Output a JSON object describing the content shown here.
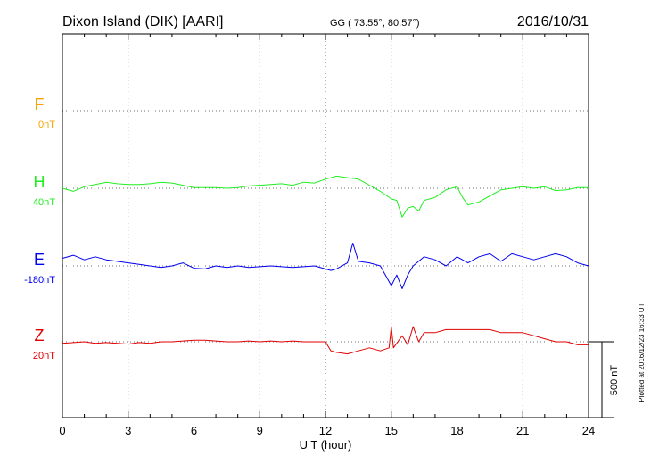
{
  "header": {
    "station": "Dixon Island (DIK)  [AARI]",
    "coords": "GG ( 73.55°,  80.57°)",
    "date": "2016/10/31"
  },
  "side_note": "Plotted at 2016/12/23 16:33 UT",
  "scale_label": "500 nT",
  "chart_data": {
    "type": "line",
    "xlabel": "U T (hour)",
    "xlim": [
      0,
      24
    ],
    "x_ticks": [
      "0",
      "3",
      "6",
      "9",
      "12",
      "15",
      "18",
      "21",
      "24"
    ],
    "scale_bar_nT": 500,
    "grid": true,
    "series": [
      {
        "name": "F",
        "baseline_label": "0nT",
        "color": "#f5a300",
        "x": [],
        "values": []
      },
      {
        "name": "H",
        "baseline_label": "40nT",
        "color": "#22ee22",
        "x": [
          0,
          0.5,
          1,
          1.5,
          2,
          2.5,
          3,
          3.5,
          4,
          4.5,
          5,
          5.5,
          6,
          6.5,
          7,
          7.5,
          8,
          8.5,
          9,
          9.5,
          10,
          10.5,
          11,
          11.5,
          12,
          12.5,
          13,
          13.5,
          14,
          14.5,
          15,
          15.25,
          15.5,
          15.75,
          16,
          16.25,
          16.5,
          17,
          17.5,
          18,
          18.25,
          18.5,
          19,
          19.5,
          20,
          20.5,
          21,
          21.5,
          22,
          22.5,
          23,
          23.5,
          24
        ],
        "values": [
          0,
          -20,
          10,
          25,
          40,
          30,
          25,
          25,
          30,
          40,
          35,
          20,
          5,
          5,
          5,
          0,
          5,
          15,
          20,
          25,
          30,
          20,
          40,
          35,
          60,
          80,
          70,
          60,
          20,
          -20,
          -70,
          -80,
          -190,
          -130,
          -120,
          -150,
          -80,
          -60,
          -10,
          10,
          -60,
          -110,
          -90,
          -50,
          -10,
          0,
          10,
          0,
          10,
          -15,
          -10,
          5,
          5
        ]
      },
      {
        "name": "E",
        "baseline_label": "-180nT",
        "color": "#0000ee",
        "x": [
          0,
          0.5,
          1,
          1.5,
          2,
          2.5,
          3,
          3.5,
          4,
          4.5,
          5,
          5.5,
          6,
          6.5,
          7,
          7.5,
          8,
          8.5,
          9,
          9.5,
          10,
          10.5,
          11,
          11.5,
          12,
          12.25,
          12.5,
          13,
          13.25,
          13.5,
          14,
          14.5,
          15,
          15.25,
          15.5,
          15.75,
          16,
          16.5,
          17,
          17.5,
          18,
          18.5,
          19,
          19.5,
          20,
          20.5,
          21,
          21.5,
          22,
          22.5,
          23,
          23.5,
          24
        ],
        "values": [
          50,
          70,
          40,
          60,
          40,
          30,
          20,
          10,
          0,
          -10,
          0,
          20,
          -15,
          -20,
          0,
          -10,
          0,
          -10,
          -5,
          0,
          -5,
          -10,
          -5,
          0,
          -20,
          -30,
          -20,
          20,
          150,
          30,
          20,
          0,
          -130,
          -60,
          -150,
          -60,
          0,
          60,
          40,
          0,
          60,
          20,
          60,
          80,
          30,
          80,
          60,
          40,
          60,
          80,
          60,
          20,
          0
        ]
      },
      {
        "name": "Z",
        "baseline_label": "20nT",
        "color": "#e00000",
        "x": [
          0,
          0.5,
          1,
          1.5,
          2,
          2.5,
          3,
          3.5,
          4,
          4.5,
          5,
          5.5,
          6,
          6.5,
          7,
          7.5,
          8,
          8.5,
          9,
          9.5,
          10,
          10.5,
          11,
          11.5,
          12,
          12.25,
          12.5,
          13,
          13.5,
          14,
          14.5,
          14.9,
          15,
          15.1,
          15.5,
          15.75,
          16,
          16.25,
          16.5,
          17,
          17.5,
          18,
          18.5,
          19,
          19.5,
          20,
          20.5,
          21,
          21.5,
          22,
          22.5,
          23,
          23.5,
          24
        ],
        "values": [
          -10,
          -5,
          0,
          -10,
          -5,
          -10,
          -15,
          -5,
          -10,
          0,
          0,
          5,
          10,
          10,
          5,
          0,
          0,
          5,
          0,
          5,
          0,
          5,
          0,
          0,
          0,
          -60,
          -70,
          -80,
          -60,
          -40,
          -60,
          -40,
          100,
          -40,
          40,
          -20,
          100,
          0,
          60,
          60,
          80,
          80,
          80,
          80,
          80,
          60,
          60,
          60,
          40,
          20,
          0,
          0,
          -20,
          -20
        ]
      }
    ]
  }
}
